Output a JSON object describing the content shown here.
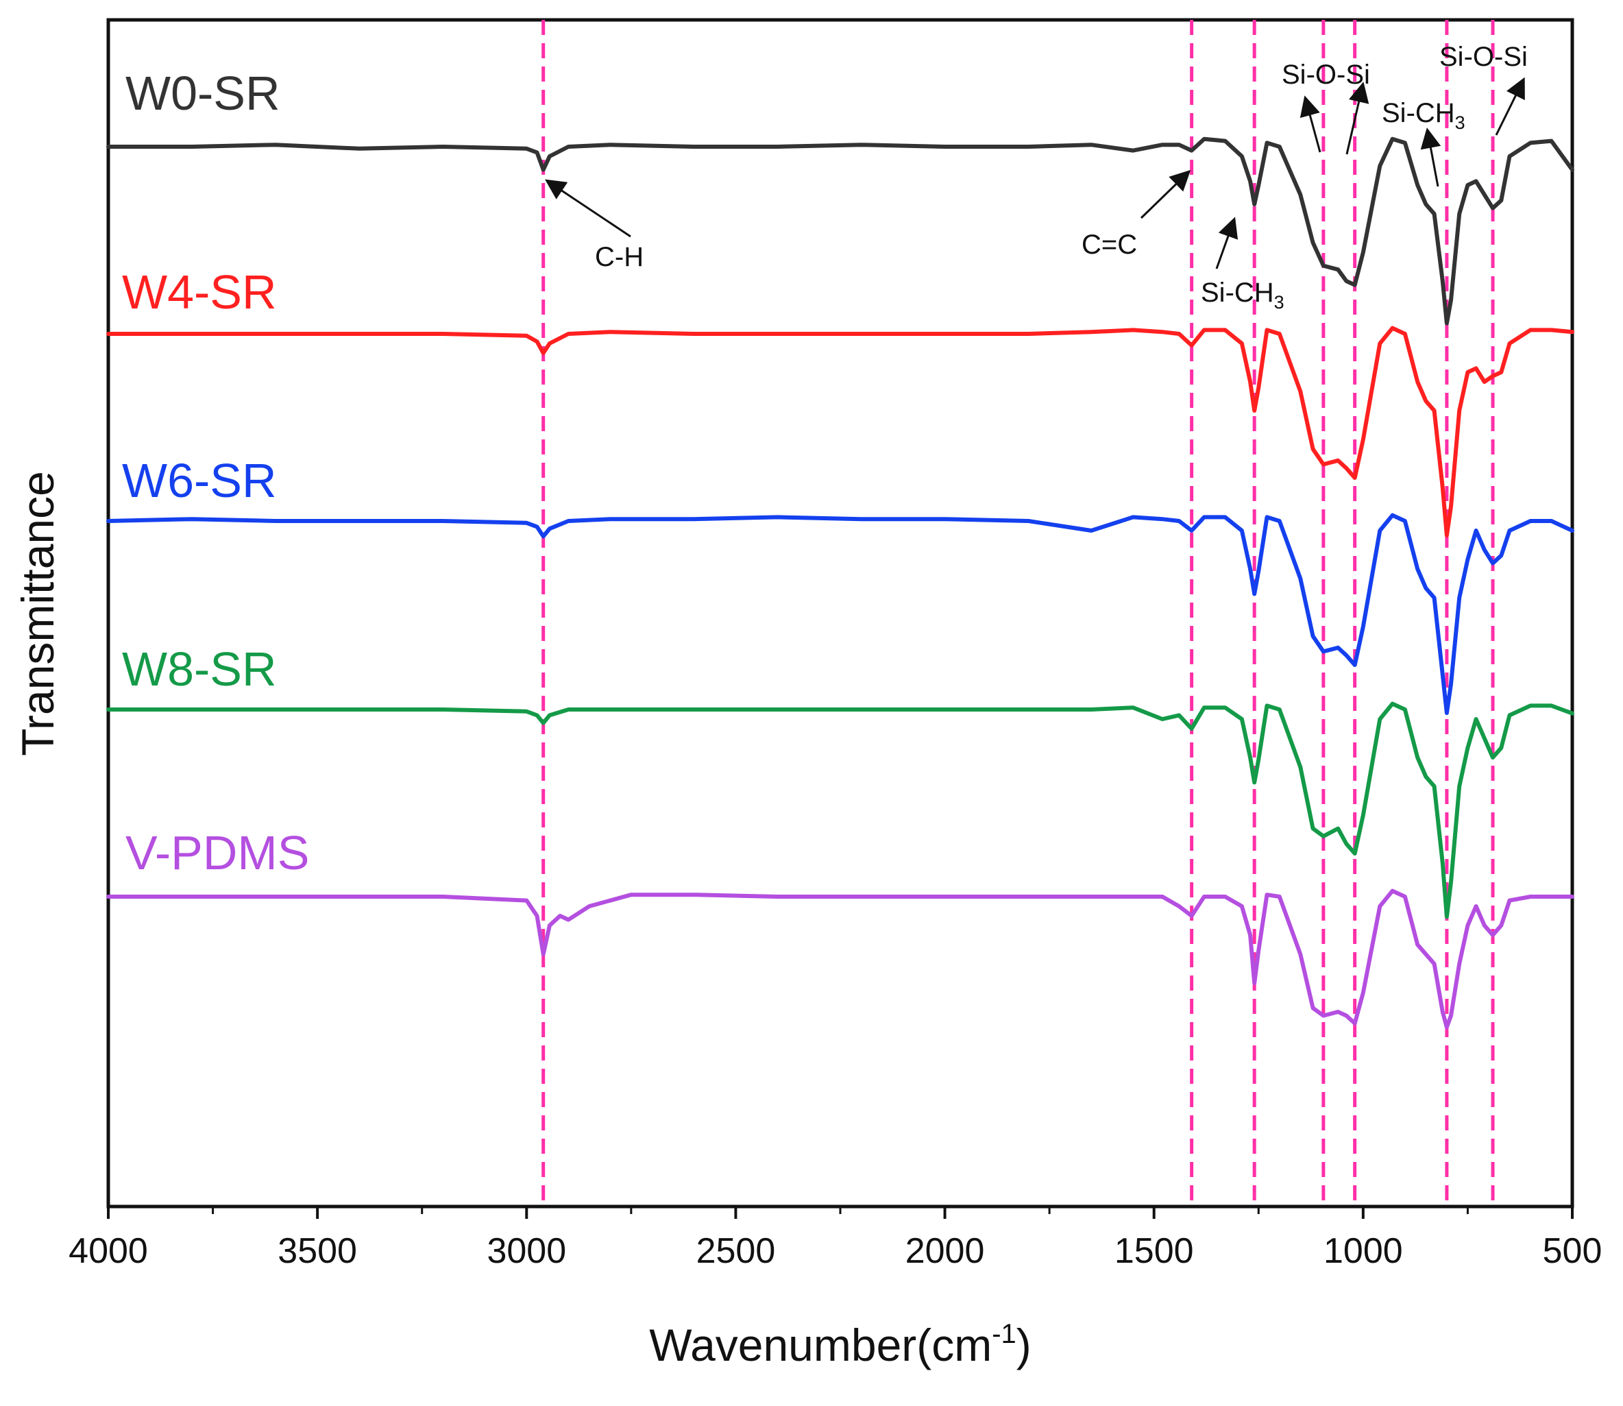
{
  "chart_data": {
    "type": "line",
    "title": "",
    "xlabel": "Wavenumber(cm",
    "xlabel_sup": "-1",
    "xlabel_end": ")",
    "ylabel": "Transmittance",
    "xlim": [
      4000,
      500
    ],
    "x_reversed": true,
    "xticks": [
      4000,
      3500,
      3000,
      2500,
      2000,
      1500,
      1000,
      500
    ],
    "xtick_labels": [
      "4000",
      "3500",
      "3000",
      "2500",
      "2000",
      "1500",
      "1000",
      "500"
    ],
    "y_units": "offset transmittance (arbitrary, 0 = baseline of each stacked trace)",
    "reference_lines": [
      2960,
      1410,
      1260,
      1095,
      1020,
      800,
      690
    ],
    "reference_line_color": "#ff2fa8",
    "annotations": [
      {
        "text": "C-H",
        "sub": "",
        "x": 2960
      },
      {
        "text": "C=C",
        "sub": "",
        "x": 1410
      },
      {
        "text": "Si-CH",
        "sub": "3",
        "x": 1260
      },
      {
        "text": "Si-O-Si",
        "sub": "",
        "x": 1095
      },
      {
        "text": "Si-O-Si",
        "sub": "",
        "x": 1020
      },
      {
        "text": "Si-CH",
        "sub": "3",
        "x": 800
      },
      {
        "text": "Si-O-Si",
        "sub": "",
        "x": 690
      }
    ],
    "series": [
      {
        "name": "W0-SR",
        "color": "#333333",
        "offset": 4,
        "x": [
          4000,
          3800,
          3600,
          3400,
          3200,
          3000,
          2975,
          2960,
          2945,
          2900,
          2800,
          2600,
          2400,
          2200,
          2000,
          1800,
          1650,
          1550,
          1480,
          1440,
          1410,
          1380,
          1330,
          1290,
          1270,
          1260,
          1250,
          1230,
          1200,
          1150,
          1120,
          1095,
          1060,
          1040,
          1020,
          1000,
          960,
          930,
          900,
          870,
          850,
          830,
          810,
          800,
          790,
          770,
          750,
          730,
          710,
          690,
          670,
          650,
          600,
          550,
          500
        ],
        "y": [
          0,
          0,
          0.01,
          -0.01,
          0,
          -0.01,
          -0.03,
          -0.12,
          -0.05,
          0,
          0.01,
          0,
          0,
          0.01,
          0,
          0,
          0.01,
          -0.02,
          0.01,
          0.01,
          -0.02,
          0.04,
          0.03,
          -0.05,
          -0.18,
          -0.3,
          -0.2,
          0.02,
          0,
          -0.25,
          -0.5,
          -0.62,
          -0.64,
          -0.7,
          -0.72,
          -0.55,
          -0.1,
          0.04,
          0.02,
          -0.2,
          -0.3,
          -0.35,
          -0.7,
          -0.92,
          -0.8,
          -0.35,
          -0.2,
          -0.18,
          -0.25,
          -0.32,
          -0.28,
          -0.05,
          0.02,
          0.03,
          -0.12
        ]
      },
      {
        "name": "W4-SR",
        "color": "#ff2020",
        "offset": 3,
        "x": [
          4000,
          3800,
          3600,
          3400,
          3200,
          3000,
          2975,
          2960,
          2945,
          2900,
          2800,
          2600,
          2400,
          2200,
          2000,
          1800,
          1650,
          1550,
          1480,
          1440,
          1410,
          1380,
          1330,
          1290,
          1270,
          1260,
          1250,
          1230,
          1200,
          1150,
          1120,
          1095,
          1060,
          1040,
          1020,
          1000,
          960,
          930,
          900,
          870,
          850,
          830,
          810,
          800,
          790,
          770,
          750,
          730,
          710,
          690,
          670,
          650,
          600,
          550,
          500
        ],
        "y": [
          0,
          0,
          0,
          0,
          0,
          -0.01,
          -0.04,
          -0.1,
          -0.05,
          0,
          0.01,
          0,
          0,
          0,
          0,
          0,
          0.01,
          0.02,
          0.01,
          0,
          -0.06,
          0.02,
          0.02,
          -0.05,
          -0.25,
          -0.4,
          -0.28,
          0.02,
          0,
          -0.3,
          -0.6,
          -0.68,
          -0.66,
          -0.7,
          -0.75,
          -0.55,
          -0.05,
          0.03,
          0,
          -0.25,
          -0.35,
          -0.4,
          -0.8,
          -1.05,
          -0.9,
          -0.4,
          -0.2,
          -0.18,
          -0.25,
          -0.22,
          -0.2,
          -0.05,
          0.02,
          0.02,
          0.01
        ]
      },
      {
        "name": "W6-SR",
        "color": "#1440ee",
        "offset": 2,
        "x": [
          4000,
          3800,
          3600,
          3400,
          3200,
          3000,
          2975,
          2960,
          2945,
          2900,
          2800,
          2600,
          2400,
          2200,
          2000,
          1800,
          1650,
          1550,
          1480,
          1440,
          1410,
          1380,
          1330,
          1290,
          1270,
          1260,
          1250,
          1230,
          1200,
          1150,
          1120,
          1095,
          1060,
          1040,
          1020,
          1000,
          960,
          930,
          900,
          870,
          850,
          830,
          810,
          800,
          790,
          770,
          750,
          730,
          710,
          690,
          670,
          650,
          600,
          550,
          500
        ],
        "y": [
          0,
          0.01,
          0,
          0,
          0,
          -0.01,
          -0.03,
          -0.08,
          -0.04,
          0,
          0.01,
          0.01,
          0.02,
          0.01,
          0.01,
          0,
          -0.05,
          0.02,
          0.01,
          0,
          -0.05,
          0.02,
          0.02,
          -0.05,
          -0.25,
          -0.38,
          -0.26,
          0.02,
          0,
          -0.3,
          -0.6,
          -0.68,
          -0.66,
          -0.7,
          -0.75,
          -0.55,
          -0.05,
          0.03,
          0,
          -0.25,
          -0.35,
          -0.4,
          -0.8,
          -1.0,
          -0.85,
          -0.4,
          -0.2,
          -0.05,
          -0.15,
          -0.22,
          -0.18,
          -0.05,
          0,
          0,
          -0.05
        ]
      },
      {
        "name": "W8-SR",
        "color": "#149a48",
        "offset": 1,
        "x": [
          4000,
          3800,
          3600,
          3400,
          3200,
          3000,
          2975,
          2960,
          2945,
          2900,
          2800,
          2600,
          2400,
          2200,
          2000,
          1800,
          1650,
          1550,
          1480,
          1440,
          1410,
          1380,
          1330,
          1290,
          1270,
          1260,
          1250,
          1230,
          1200,
          1150,
          1120,
          1095,
          1060,
          1040,
          1020,
          1000,
          960,
          930,
          900,
          870,
          850,
          830,
          810,
          800,
          790,
          770,
          750,
          730,
          710,
          690,
          670,
          650,
          600,
          550,
          500
        ],
        "y": [
          0,
          0,
          0,
          0,
          0,
          -0.01,
          -0.03,
          -0.07,
          -0.03,
          0,
          0,
          0,
          0,
          0,
          0,
          0,
          0,
          0.01,
          -0.05,
          -0.03,
          -0.1,
          0.01,
          0.01,
          -0.05,
          -0.25,
          -0.38,
          -0.26,
          0.02,
          0,
          -0.3,
          -0.62,
          -0.66,
          -0.62,
          -0.7,
          -0.75,
          -0.55,
          -0.05,
          0.03,
          0,
          -0.25,
          -0.35,
          -0.4,
          -0.8,
          -1.08,
          -0.9,
          -0.4,
          -0.2,
          -0.05,
          -0.15,
          -0.25,
          -0.2,
          -0.03,
          0.02,
          0.02,
          -0.02
        ]
      },
      {
        "name": "V-PDMS",
        "color": "#b44fe0",
        "offset": 0,
        "x": [
          4000,
          3800,
          3600,
          3400,
          3200,
          3000,
          2975,
          2960,
          2945,
          2920,
          2900,
          2850,
          2750,
          2600,
          2400,
          2200,
          2000,
          1800,
          1650,
          1550,
          1480,
          1440,
          1410,
          1380,
          1330,
          1290,
          1270,
          1260,
          1250,
          1230,
          1200,
          1150,
          1120,
          1095,
          1060,
          1040,
          1020,
          1000,
          960,
          930,
          900,
          870,
          850,
          830,
          810,
          800,
          790,
          770,
          750,
          730,
          710,
          690,
          670,
          650,
          600,
          550,
          500
        ],
        "y": [
          0,
          0,
          0,
          0,
          0,
          -0.02,
          -0.1,
          -0.3,
          -0.15,
          -0.1,
          -0.12,
          -0.05,
          0.01,
          0.01,
          0,
          0,
          0,
          0,
          0,
          0,
          0,
          -0.05,
          -0.1,
          0,
          0,
          -0.05,
          -0.2,
          -0.45,
          -0.28,
          0.01,
          0,
          -0.3,
          -0.58,
          -0.62,
          -0.6,
          -0.62,
          -0.66,
          -0.5,
          -0.05,
          0.03,
          0,
          -0.25,
          -0.3,
          -0.35,
          -0.6,
          -0.68,
          -0.62,
          -0.35,
          -0.15,
          -0.05,
          -0.15,
          -0.2,
          -0.15,
          -0.02,
          0,
          0,
          0
        ]
      }
    ]
  }
}
